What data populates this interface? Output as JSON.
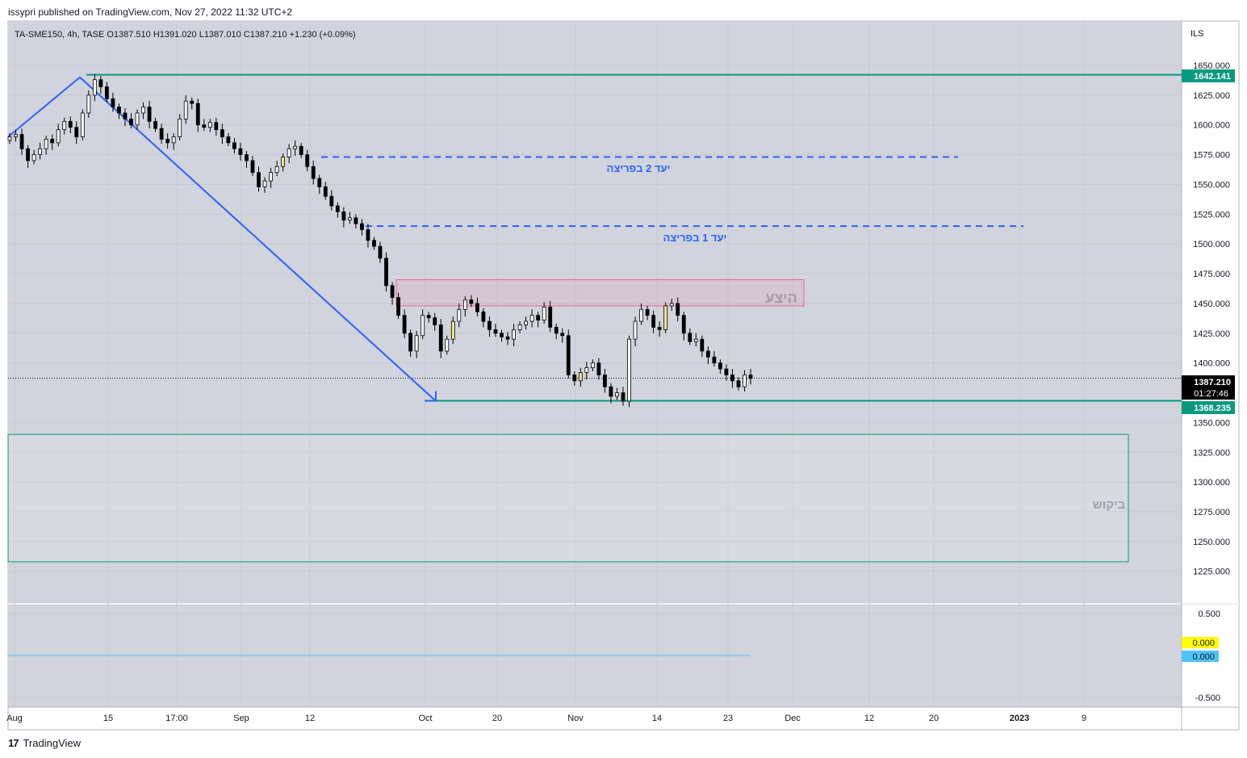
{
  "header": {
    "published": "issypri published on TradingView.com, Nov 27, 2022 11:32 UTC+2"
  },
  "legend": {
    "text": "TA-SME150, 4h, TASE  O1387.510  H1391.020  L1387.010  C1387.210  +1.230 (+0.09%)"
  },
  "currency": "ILS",
  "footer": {
    "logo": "17",
    "brand": "TradingView"
  },
  "annotations": {
    "target2": "יעד 2 בפריצה",
    "target1": "יעד 1 בפריצה",
    "supply": "היצע",
    "demand": "ביקוש"
  },
  "price_labels": {
    "resistance": "1642.141",
    "last": "1387.210",
    "countdown": "01:27:46",
    "support": "1368.235",
    "ind_a": "0.000",
    "ind_b": "0.000"
  },
  "colors": {
    "plot_bg": "#d1d4dc",
    "green_line": "#089981",
    "blue_line": "#2962ff",
    "candle_up_fill": "#ffffff",
    "candle_down": "#000000",
    "highlight": "#f5e88c",
    "supply_zone": "#f06292",
    "ind_yellow": "#ffff00",
    "ind_blue": "#4fc3f7"
  },
  "chart_data": {
    "type": "candlestick",
    "symbol": "TA-SME150",
    "timeframe": "4h",
    "exchange": "TASE",
    "y_ticks": [
      "1650.000",
      "1625.000",
      "1600.000",
      "1575.000",
      "1550.000",
      "1525.000",
      "1500.000",
      "1475.000",
      "1450.000",
      "1425.000",
      "1400.000",
      "1350.000",
      "1325.000",
      "1300.000",
      "1275.000",
      "1250.000",
      "1225.000"
    ],
    "y_tick_values": [
      1650,
      1625,
      1600,
      1575,
      1550,
      1525,
      1500,
      1475,
      1450,
      1425,
      1400,
      1350,
      1325,
      1300,
      1275,
      1250,
      1225
    ],
    "ylim": [
      1210,
      1670
    ],
    "x_ticks": [
      "Aug",
      "15",
      "17:00",
      "Sep",
      "12",
      "Oct",
      "20",
      "Nov",
      "14",
      "23",
      "Dec",
      "12",
      "20",
      "2023",
      "9"
    ],
    "indicator_ticks": [
      "0.500",
      "-0.500"
    ],
    "indicator_tick_values": [
      0.5,
      -0.5
    ],
    "indicator_ylim": [
      -0.75,
      0.75
    ],
    "levels": {
      "resistance": 1642.141,
      "support": 1368.235,
      "last": 1387.21,
      "target2": 1573,
      "target1": 1515
    },
    "zones": {
      "supply": [
        1448,
        1470
      ],
      "demand": [
        1233,
        1340
      ]
    },
    "trend_points": [
      [
        1590,
        0
      ],
      [
        1640,
        1
      ],
      [
        1368,
        2
      ]
    ],
    "closes": [
      1590,
      1592,
      1580,
      1570,
      1575,
      1580,
      1588,
      1585,
      1596,
      1603,
      1598,
      1590,
      1610,
      1625,
      1638,
      1632,
      1622,
      1615,
      1610,
      1605,
      1600,
      1610,
      1615,
      1603,
      1597,
      1588,
      1585,
      1590,
      1605,
      1620,
      1618,
      1600,
      1598,
      1602,
      1596,
      1590,
      1585,
      1580,
      1575,
      1570,
      1560,
      1548,
      1553,
      1560,
      1565,
      1573,
      1580,
      1582,
      1575,
      1565,
      1555,
      1548,
      1540,
      1532,
      1527,
      1520,
      1522,
      1517,
      1512,
      1503,
      1498,
      1488,
      1465,
      1455,
      1440,
      1425,
      1410,
      1423,
      1440,
      1438,
      1432,
      1410,
      1420,
      1435,
      1445,
      1453,
      1450,
      1443,
      1435,
      1428,
      1425,
      1422,
      1420,
      1428,
      1432,
      1435,
      1440,
      1436,
      1447,
      1430,
      1425,
      1423,
      1390,
      1385,
      1392,
      1396,
      1400,
      1390,
      1380,
      1372,
      1375,
      1368,
      1420,
      1435,
      1445,
      1440,
      1430,
      1428,
      1448,
      1450,
      1440,
      1425,
      1418,
      1420,
      1410,
      1405,
      1400,
      1395,
      1390,
      1385,
      1380,
      1390,
      1387
    ]
  }
}
